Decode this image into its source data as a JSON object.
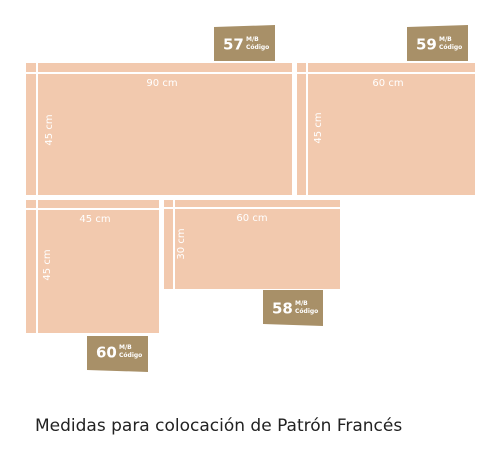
{
  "tiles": [
    {
      "width": "90 cm",
      "height": "45 cm"
    },
    {
      "width": "60 cm",
      "height": "45 cm"
    },
    {
      "width": "45 cm",
      "height": "45 cm"
    },
    {
      "width": "60 cm",
      "height": "30 cm"
    }
  ],
  "badges": [
    {
      "number": "57",
      "unit": "M/B",
      "label": "Código"
    },
    {
      "number": "59",
      "unit": "M/B",
      "label": "Código"
    },
    {
      "number": "58",
      "unit": "M/B",
      "label": "Código"
    },
    {
      "number": "60",
      "unit": "M/B",
      "label": "Código"
    }
  ],
  "caption": "Medidas para colocación de Patrón Francés"
}
